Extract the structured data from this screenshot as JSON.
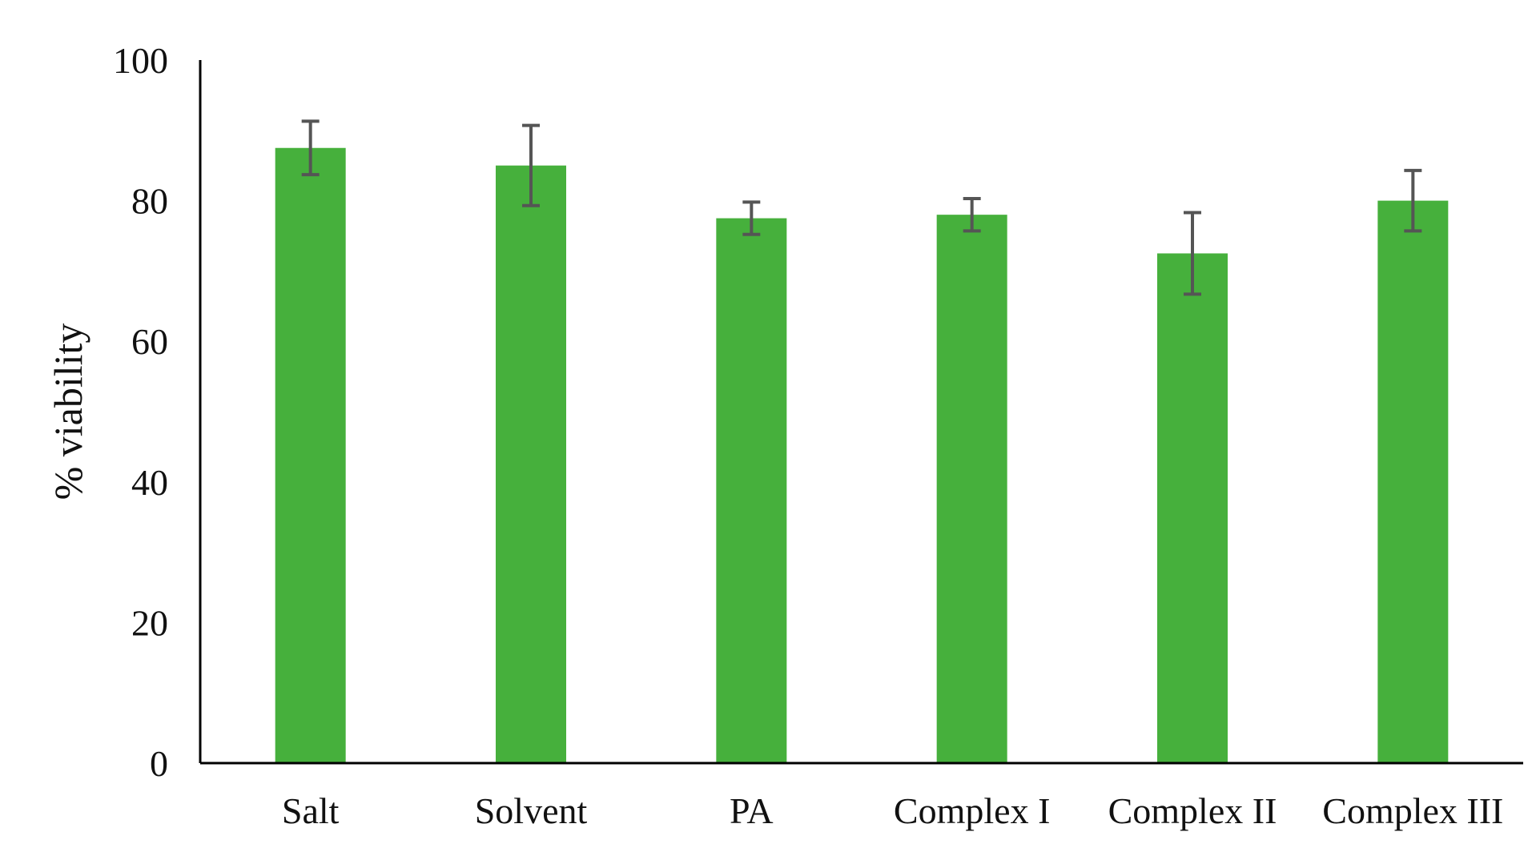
{
  "chart_data": {
    "type": "bar",
    "title": "",
    "xlabel": "",
    "ylabel": "% viability",
    "ylim": [
      0,
      100
    ],
    "yticks": [
      0,
      20,
      40,
      60,
      80,
      100
    ],
    "ytick_labels": [
      "0",
      "20",
      "40",
      "60",
      "80",
      "100"
    ],
    "grid": false,
    "legend": "none",
    "categories": [
      "Salt",
      "Solvent",
      "PA",
      "Complex I",
      "Complex II",
      "Complex III"
    ],
    "values": [
      87.5,
      85,
      77.5,
      78,
      72.5,
      80
    ],
    "errors": [
      3.8,
      5.7,
      2.3,
      2.3,
      5.8,
      4.3
    ],
    "colors": {
      "bar": "#46b03c",
      "error_bar": "#555555",
      "axis": "#000000"
    }
  }
}
